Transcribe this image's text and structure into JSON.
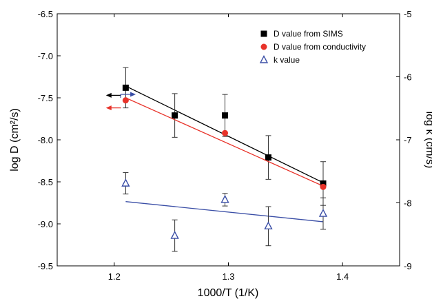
{
  "chart_data": {
    "type": "scatter",
    "title": "",
    "xlabel": "1000/T (1/K)",
    "ylabel_left": "log D (cm²/s)",
    "ylabel_right": "log k (cm/s)",
    "xlim": [
      1.15,
      1.45
    ],
    "ylim_left": [
      -9.5,
      -6.5
    ],
    "ylim_right": [
      -9,
      -5
    ],
    "x_ticks": [
      "1.2",
      "1.3",
      "1.4"
    ],
    "y_left_ticks": [
      "-6.5",
      "-7.0",
      "-7.5",
      "-8.0",
      "-8.5",
      "-9.0",
      "-9.5"
    ],
    "y_right_ticks": [
      "-5",
      "-6",
      "-7",
      "-8",
      "-9"
    ],
    "legend_position": "top-right",
    "series": [
      {
        "name": "D value from SIMS",
        "axis": "left",
        "marker": "square",
        "color": "#000000",
        "points": [
          {
            "x": 1.21,
            "y": -7.38,
            "err": 0.24
          },
          {
            "x": 1.253,
            "y": -7.71,
            "err": 0.26
          },
          {
            "x": 1.297,
            "y": -7.71,
            "err": 0.25
          },
          {
            "x": 1.335,
            "y": -8.21,
            "err": 0.26
          },
          {
            "x": 1.383,
            "y": -8.52,
            "err": 0.26
          }
        ],
        "fit": {
          "x": [
            1.21,
            1.383
          ],
          "y": [
            -7.36,
            -8.51
          ]
        }
      },
      {
        "name": "D value from conductivity",
        "axis": "left",
        "marker": "circle",
        "color": "#e8332a",
        "points": [
          {
            "x": 1.21,
            "y": -7.53,
            "err": 0
          },
          {
            "x": 1.297,
            "y": -7.92,
            "err": 0
          },
          {
            "x": 1.383,
            "y": -8.56,
            "err": 0
          }
        ],
        "fit": {
          "x": [
            1.21,
            1.383
          ],
          "y": [
            -7.5,
            -8.55
          ]
        }
      },
      {
        "name": "k value",
        "axis": "right",
        "marker": "triangle-open",
        "color": "#3a4ea6",
        "points": [
          {
            "x": 1.21,
            "y": -7.69,
            "err": 0.17
          },
          {
            "x": 1.253,
            "y": -8.52,
            "err": 0.25
          },
          {
            "x": 1.297,
            "y": -7.95,
            "err": 0.1
          },
          {
            "x": 1.335,
            "y": -8.37,
            "err": 0.31
          },
          {
            "x": 1.383,
            "y": -8.17,
            "err": 0.25
          }
        ],
        "fit": {
          "x": [
            1.21,
            1.383
          ],
          "y": [
            -7.98,
            -8.3
          ]
        }
      }
    ],
    "axis_indicators": [
      {
        "series": "D value from SIMS",
        "direction": "left",
        "x": 1.206,
        "y": -7.47,
        "color": "#000000"
      },
      {
        "series": "D value from conductivity",
        "direction": "left",
        "x": 1.206,
        "y": -7.62,
        "color": "#e8332a"
      },
      {
        "series": "k value",
        "direction": "right",
        "x": 1.208,
        "y": -7.5,
        "color": "#3a4ea6"
      }
    ]
  }
}
